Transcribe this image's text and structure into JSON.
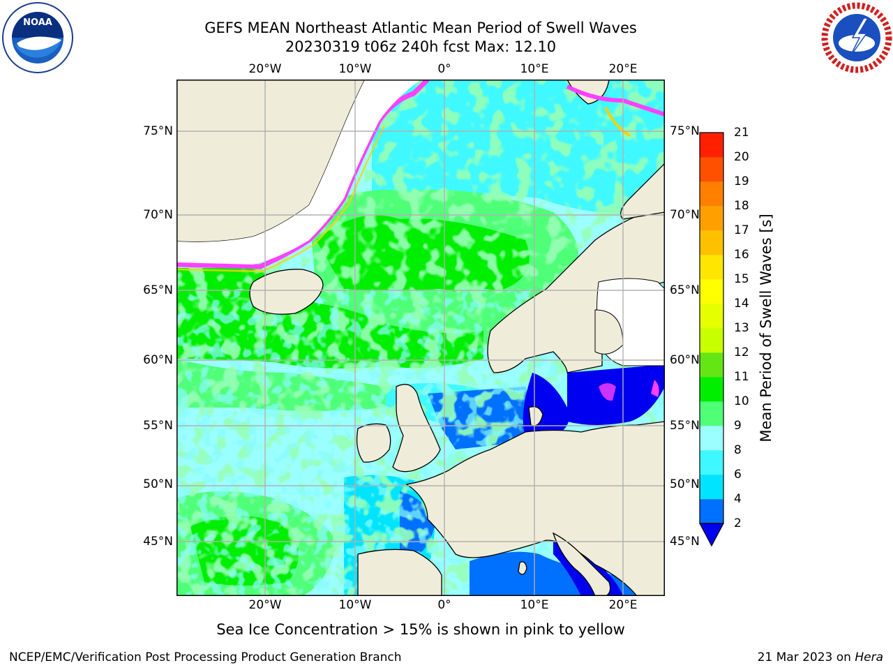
{
  "title_line1": "GEFS MEAN Northeast Atlantic Mean Period of Swell Waves",
  "title_line2": "20230319 t06z 240h fcst   Max: 12.10",
  "lon_labels": [
    "20°W",
    "10°W",
    "0°",
    "10°E",
    "20°E"
  ],
  "lat_labels": [
    "75°N",
    "70°N",
    "65°N",
    "60°N",
    "55°N",
    "50°N",
    "45°N"
  ],
  "colorbar": {
    "label": "Mean Period of Swell Waves [s]",
    "ticks": [
      "2",
      "4",
      "6",
      "8",
      "9",
      "10",
      "11",
      "12",
      "13",
      "14",
      "15",
      "16",
      "17",
      "18",
      "19",
      "20",
      "21"
    ],
    "colors": [
      "#0070ff",
      "#00e4ff",
      "#40f8ff",
      "#9cffff",
      "#50ff78",
      "#00ee00",
      "#64e614",
      "#c8ff00",
      "#e6ff00",
      "#ffff00",
      "#ffe600",
      "#ffc000",
      "#ffa000",
      "#ff8000",
      "#ff5000",
      "#ff2000"
    ],
    "under_color": "#0000f0"
  },
  "colors": {
    "land": "#efedda",
    "grid": "#b0b0b0",
    "ocean_light": "#9cffff",
    "ocean_cyan": "#40f8ff",
    "ocean_aqua": "#00e4ff",
    "ocean_green": "#00ee00",
    "ocean_lightgreen": "#50ff78",
    "shelf_blue": "#0070ff",
    "deep_blue": "#0000f0",
    "ice_pink": "#ff40ff",
    "ice_yellow": "#ffd000"
  },
  "note": "Sea Ice Concentration > 15% is shown in pink to yellow",
  "footer_left": "NCEP/EMC/Verification Post Processing Product Generation Branch",
  "footer_right_date": "21 Mar 2023 on",
  "footer_right_host": "Hera",
  "logos": {
    "left": "noaa-logo",
    "right": "nws-logo"
  }
}
